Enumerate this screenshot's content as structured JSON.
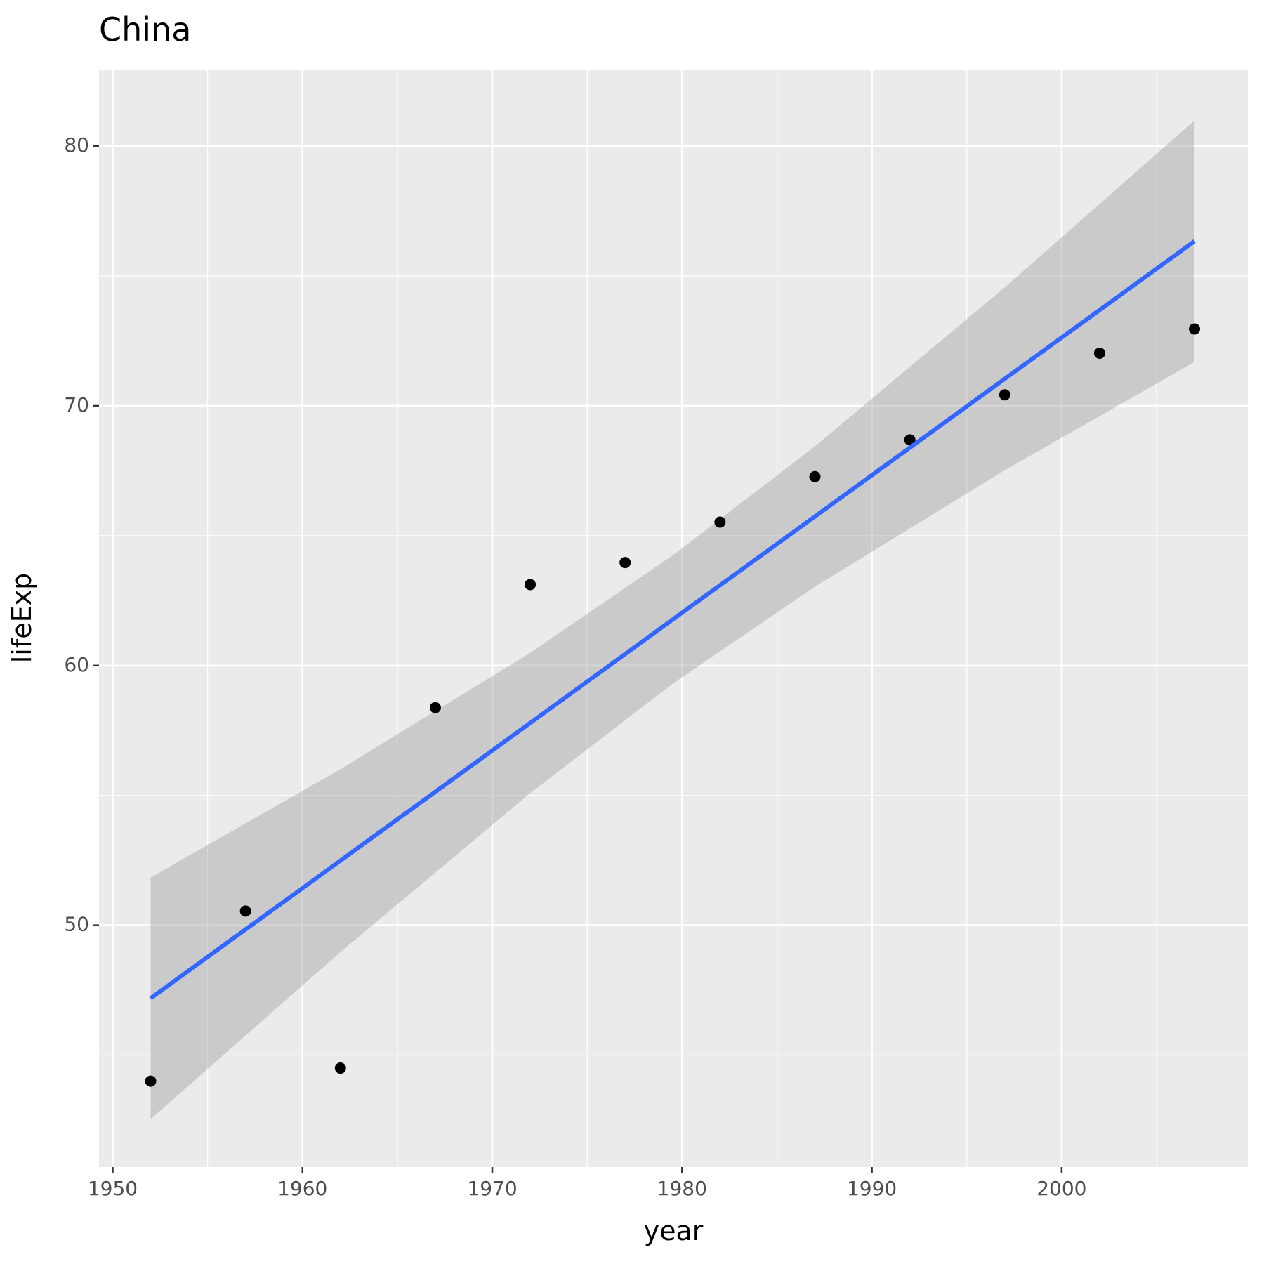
{
  "chart_data": {
    "type": "scatter",
    "title": "China",
    "xlabel": "year",
    "ylabel": "lifeExp",
    "x": [
      1952,
      1957,
      1962,
      1967,
      1972,
      1977,
      1982,
      1987,
      1992,
      1997,
      2002,
      2007
    ],
    "values": [
      44.0,
      50.549,
      44.501,
      58.381,
      63.119,
      63.967,
      65.525,
      67.274,
      68.69,
      70.426,
      72.028,
      72.961
    ],
    "color": "#000000",
    "smooth": {
      "color": "#3366FF",
      "band_color": "#999999",
      "x": [
        1952,
        1962,
        1972,
        1979.5,
        1987,
        1997,
        2007
      ],
      "fit": [
        47.19,
        52.49,
        57.79,
        61.77,
        65.74,
        71.04,
        76.34
      ],
      "lower": [
        42.54,
        48.97,
        55.09,
        59.3,
        63.04,
        67.52,
        71.69
      ],
      "upper": [
        51.84,
        56.01,
        60.49,
        64.24,
        68.44,
        74.56,
        80.99
      ]
    },
    "xlim": [
      1949.28,
      2009.81
    ],
    "ylim": [
      40.69,
      82.95
    ],
    "xticks": [
      1950,
      1960,
      1970,
      1980,
      1990,
      2000
    ],
    "yticks": [
      50,
      60,
      70,
      80
    ],
    "xminor": [
      1955,
      1965,
      1975,
      1985,
      1995,
      2005
    ],
    "yminor": [
      45,
      55,
      65,
      75
    ],
    "grid": true
  }
}
